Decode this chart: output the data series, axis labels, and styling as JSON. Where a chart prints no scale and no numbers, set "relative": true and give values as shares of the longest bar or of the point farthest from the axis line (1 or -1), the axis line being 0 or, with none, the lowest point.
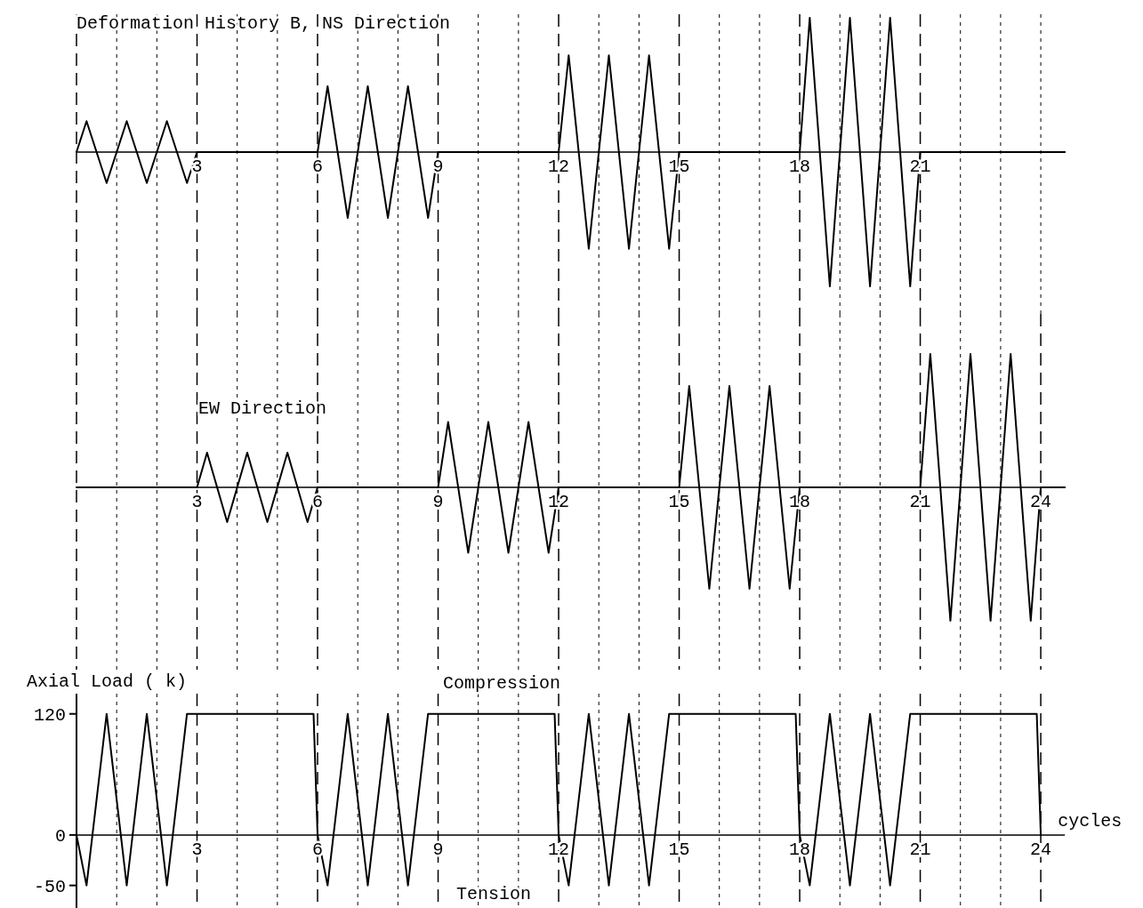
{
  "chart_data": [
    {
      "type": "line",
      "title": "Deformation History B, NS Direction",
      "relative": true,
      "grid": "x",
      "xlim": [
        0,
        24.6
      ],
      "xticks": [
        {
          "value": 1,
          "label": null
        },
        {
          "value": 2,
          "label": null
        },
        3,
        {
          "value": 4,
          "label": null
        },
        {
          "value": 5,
          "label": null
        },
        6,
        {
          "value": 7,
          "label": null
        },
        {
          "value": 8,
          "label": null
        },
        9,
        {
          "value": 10,
          "label": null
        },
        {
          "value": 11,
          "label": null
        },
        12,
        {
          "value": 13,
          "label": null
        },
        {
          "value": 14,
          "label": null
        },
        15,
        {
          "value": 16,
          "label": null
        },
        {
          "value": 17,
          "label": null
        },
        18,
        {
          "value": 19,
          "label": null
        },
        {
          "value": 20,
          "label": null
        },
        21,
        {
          "value": 22,
          "label": null
        },
        {
          "value": 23,
          "label": null
        },
        {
          "value": 24,
          "label": null
        }
      ],
      "series": [
        {
          "color": "#000000",
          "x": [
            0,
            0.25,
            0.75,
            1.25,
            1.75,
            2.25,
            2.75,
            3,
            6,
            6.25,
            6.75,
            7.25,
            7.75,
            8.25,
            8.75,
            9,
            12,
            12.25,
            12.75,
            13.25,
            13.75,
            14.25,
            14.75,
            15,
            18,
            18.25,
            18.75,
            19.25,
            19.75,
            20.25,
            20.75,
            21,
            24.6
          ],
          "values": [
            0,
            0.23,
            -0.23,
            0.23,
            -0.23,
            0.23,
            -0.23,
            0,
            0,
            0.49,
            -0.49,
            0.49,
            -0.49,
            0.49,
            -0.49,
            0,
            0,
            0.72,
            -0.72,
            0.72,
            -0.72,
            0.72,
            -0.72,
            0,
            0,
            1,
            -1,
            1,
            -1,
            1,
            -1,
            0,
            0
          ]
        }
      ]
    },
    {
      "type": "line",
      "title": "EW Direction",
      "relative": true,
      "grid": "x",
      "xlim": [
        0,
        24.6
      ],
      "xticks": [
        {
          "value": 1,
          "label": null
        },
        {
          "value": 2,
          "label": null
        },
        3,
        {
          "value": 4,
          "label": null
        },
        {
          "value": 5,
          "label": null
        },
        6,
        {
          "value": 7,
          "label": null
        },
        {
          "value": 8,
          "label": null
        },
        9,
        {
          "value": 10,
          "label": null
        },
        {
          "value": 11,
          "label": null
        },
        12,
        {
          "value": 13,
          "label": null
        },
        {
          "value": 14,
          "label": null
        },
        15,
        {
          "value": 16,
          "label": null
        },
        {
          "value": 17,
          "label": null
        },
        18,
        {
          "value": 19,
          "label": null
        },
        {
          "value": 20,
          "label": null
        },
        21,
        {
          "value": 22,
          "label": null
        },
        {
          "value": 23,
          "label": null
        },
        24
      ],
      "series": [
        {
          "color": "#000000",
          "x": [
            0,
            3,
            3.25,
            3.75,
            4.25,
            4.75,
            5.25,
            5.75,
            6,
            9,
            9.25,
            9.75,
            10.25,
            10.75,
            11.25,
            11.75,
            12,
            15,
            15.25,
            15.75,
            16.25,
            16.75,
            17.25,
            17.75,
            18,
            21,
            21.25,
            21.75,
            22.25,
            22.75,
            23.25,
            23.75,
            24,
            24.6
          ],
          "values": [
            0,
            0,
            0.26,
            -0.26,
            0.26,
            -0.26,
            0.26,
            -0.26,
            0,
            0,
            0.49,
            -0.49,
            0.49,
            -0.49,
            0.49,
            -0.49,
            0,
            0,
            0.76,
            -0.76,
            0.76,
            -0.76,
            0.76,
            -0.76,
            0,
            0,
            1,
            -1,
            1,
            -1,
            1,
            -1,
            0,
            0
          ]
        }
      ]
    },
    {
      "type": "line",
      "ylabel": "Axial Load ( k)",
      "xlabel": "cycles",
      "grid": "x",
      "xlim": [
        0,
        24.6
      ],
      "ylim": [
        -75,
        140
      ],
      "yticks": [
        -50,
        0,
        120
      ],
      "xticks": [
        {
          "value": 1,
          "label": null
        },
        {
          "value": 2,
          "label": null
        },
        3,
        {
          "value": 4,
          "label": null
        },
        {
          "value": 5,
          "label": null
        },
        6,
        {
          "value": 7,
          "label": null
        },
        {
          "value": 8,
          "label": null
        },
        9,
        {
          "value": 10,
          "label": null
        },
        {
          "value": 11,
          "label": null
        },
        12,
        {
          "value": 13,
          "label": null
        },
        {
          "value": 14,
          "label": null
        },
        15,
        {
          "value": 16,
          "label": null
        },
        {
          "value": 17,
          "label": null
        },
        18,
        {
          "value": 19,
          "label": null
        },
        {
          "value": 20,
          "label": null
        },
        21,
        {
          "value": 22,
          "label": null
        },
        {
          "value": 23,
          "label": null
        },
        24
      ],
      "annotations": [
        "Compression",
        "Tension"
      ],
      "series": [
        {
          "color": "#000000",
          "x": [
            0,
            0.25,
            0.75,
            1.25,
            1.75,
            2.25,
            2.75,
            5.9,
            6,
            6.25,
            6.75,
            7.25,
            7.75,
            8.25,
            8.75,
            11.9,
            12,
            12.25,
            12.75,
            13.25,
            13.75,
            14.25,
            14.75,
            17.9,
            18,
            18.25,
            18.75,
            19.25,
            19.75,
            20.25,
            20.75,
            23.9,
            24
          ],
          "values": [
            0,
            -50,
            120,
            -50,
            120,
            -50,
            120,
            120,
            0,
            -50,
            120,
            -50,
            120,
            -50,
            120,
            120,
            0,
            -50,
            120,
            -50,
            120,
            -50,
            120,
            120,
            0,
            -50,
            120,
            -50,
            120,
            -50,
            120,
            120,
            0
          ]
        }
      ]
    }
  ]
}
